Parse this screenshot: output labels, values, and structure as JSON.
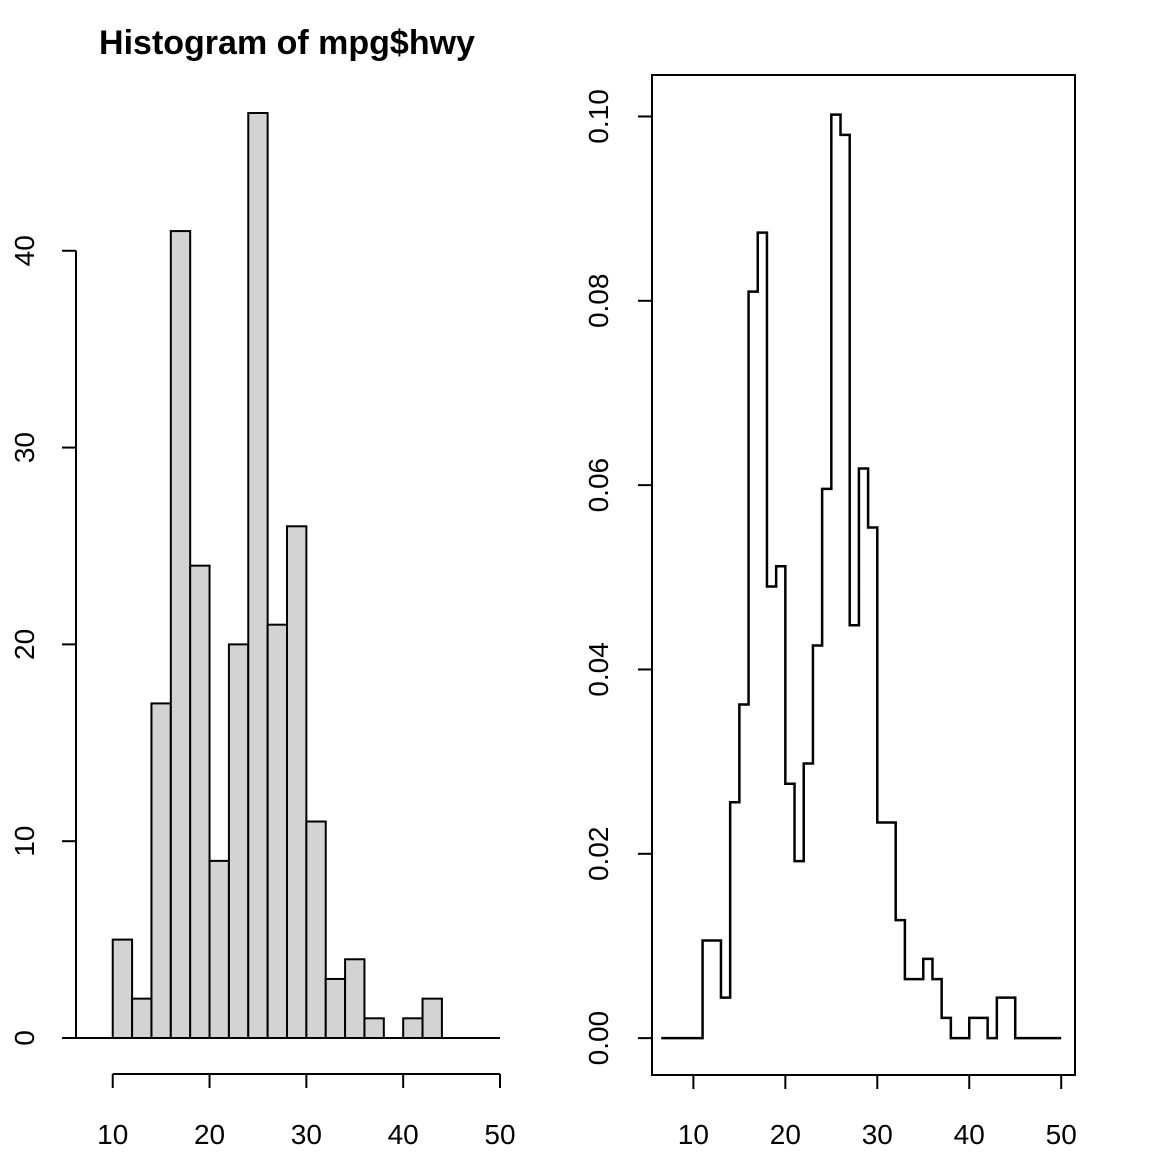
{
  "colors": {
    "bar_fill": "#d3d3d3",
    "line": "#000000",
    "background": "#ffffff"
  },
  "chart_data": [
    {
      "type": "bar",
      "title": "Histogram of mpg$hwy",
      "xlabel": "",
      "ylabel": "",
      "bin_edges": [
        10,
        12,
        14,
        16,
        18,
        20,
        22,
        24,
        26,
        28,
        30,
        32,
        34,
        36,
        38,
        40,
        42,
        44
      ],
      "values": [
        5,
        2,
        17,
        41,
        24,
        9,
        20,
        47,
        21,
        26,
        11,
        3,
        4,
        1,
        0,
        1,
        2
      ],
      "baseline_range": [
        6,
        50
      ],
      "xlim": [
        6,
        50
      ],
      "ylim": [
        0,
        47
      ],
      "xticks": [
        10,
        20,
        30,
        40,
        50
      ],
      "xtick_labels": [
        "10",
        "20",
        "30",
        "40",
        "50"
      ],
      "yticks": [
        0,
        10,
        20,
        30,
        40
      ],
      "ytick_labels": [
        "0",
        "10",
        "20",
        "30",
        "40"
      ],
      "box": false
    },
    {
      "type": "line",
      "step": true,
      "title": "",
      "xlabel": "",
      "ylabel": "",
      "x": [
        6.5,
        11,
        13,
        14,
        15,
        16,
        17,
        18,
        19,
        20,
        21,
        22,
        23,
        24,
        25,
        26,
        27,
        28,
        29,
        30,
        32,
        33,
        35,
        36,
        37,
        38,
        40,
        42,
        43,
        45,
        50
      ],
      "y": [
        0,
        0.0106,
        0.0044,
        0.0256,
        0.0362,
        0.081,
        0.0874,
        0.049,
        0.0512,
        0.0276,
        0.0192,
        0.0298,
        0.0426,
        0.0596,
        0.1002,
        0.098,
        0.0448,
        0.0618,
        0.0554,
        0.0234,
        0.0128,
        0.0064,
        0.0086,
        0.0064,
        0.0022,
        0,
        0.0022,
        0,
        0.0044,
        0,
        0
      ],
      "xlim": [
        5.5,
        51.5
      ],
      "ylim": [
        -0.004,
        0.1045
      ],
      "xticks": [
        10,
        20,
        30,
        40,
        50
      ],
      "xtick_labels": [
        "10",
        "20",
        "30",
        "40",
        "50"
      ],
      "yticks": [
        0,
        0.02,
        0.04,
        0.06,
        0.08,
        0.1
      ],
      "ytick_labels": [
        "0.00",
        "0.02",
        "0.04",
        "0.06",
        "0.08",
        "0.10"
      ],
      "box": true
    }
  ]
}
